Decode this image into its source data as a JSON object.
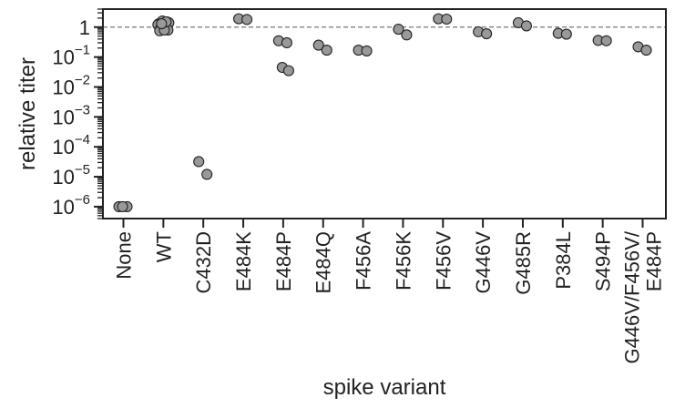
{
  "chart_data": {
    "type": "scatter",
    "xlabel": "spike variant",
    "ylabel": "relative titer",
    "y_scale": "log",
    "ylim": [
      4e-07,
      4
    ],
    "y_ticks": [
      {
        "base": "1",
        "exp": ""
      },
      {
        "base": "10",
        "exp": "−1"
      },
      {
        "base": "10",
        "exp": "−2"
      },
      {
        "base": "10",
        "exp": "−3"
      },
      {
        "base": "10",
        "exp": "−4"
      },
      {
        "base": "10",
        "exp": "−5"
      },
      {
        "base": "10",
        "exp": "−6"
      }
    ],
    "reference_line": 1,
    "point_color": "#999999",
    "point_edge_color": "#222222",
    "categories": [
      {
        "label": "None",
        "label2": "",
        "values": [
          1e-06,
          1e-06,
          1e-06
        ]
      },
      {
        "label": "WT",
        "label2": "",
        "values": [
          1.3,
          1.5,
          1.6,
          1.4,
          1.2,
          1.0,
          0.9,
          0.8,
          0.75,
          0.8,
          1.5,
          1.3
        ]
      },
      {
        "label": "C432D",
        "label2": "",
        "values": [
          3.2e-05,
          1.2e-05
        ]
      },
      {
        "label": "E484K",
        "label2": "",
        "values": [
          1.9,
          1.8
        ]
      },
      {
        "label": "E484P",
        "label2": "",
        "values": [
          0.35,
          0.3,
          0.045,
          0.035
        ]
      },
      {
        "label": "E484Q",
        "label2": "",
        "values": [
          0.25,
          0.17
        ]
      },
      {
        "label": "F456A",
        "label2": "",
        "values": [
          0.17,
          0.16
        ]
      },
      {
        "label": "F456K",
        "label2": "",
        "values": [
          0.85,
          0.55
        ]
      },
      {
        "label": "F456V",
        "label2": "",
        "values": [
          1.9,
          1.85
        ]
      },
      {
        "label": "G446V",
        "label2": "",
        "values": [
          0.7,
          0.6
        ]
      },
      {
        "label": "G485R",
        "label2": "",
        "values": [
          1.4,
          1.1
        ]
      },
      {
        "label": "P384L",
        "label2": "",
        "values": [
          0.62,
          0.58
        ]
      },
      {
        "label": "S494P",
        "label2": "",
        "values": [
          0.36,
          0.35
        ]
      },
      {
        "label": "G446V/F456V/",
        "label2": "E484P",
        "values": [
          0.22,
          0.17
        ]
      }
    ]
  }
}
